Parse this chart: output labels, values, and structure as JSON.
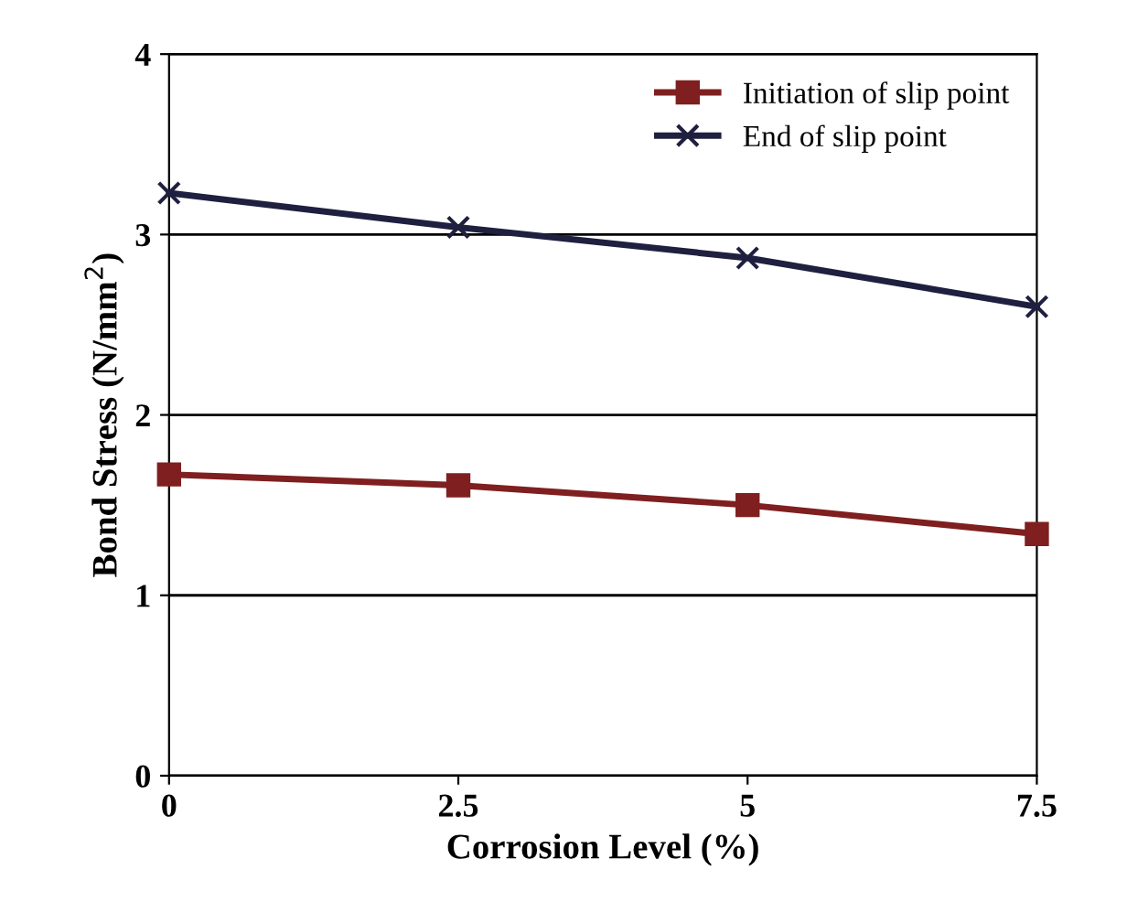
{
  "chart_data": {
    "type": "line",
    "xlabel": "Corrosion Level (%)",
    "ylabel": "Bond Stress (N/mm$^{2}$)",
    "x": [
      0,
      2.5,
      5,
      7.5
    ],
    "series": [
      {
        "name": "Initiation of slip point",
        "color": "#7f1f1f",
        "marker": "square",
        "values": [
          1.67,
          1.61,
          1.5,
          1.34
        ]
      },
      {
        "name": "End of slip point",
        "color": "#1f1f3f",
        "marker": "cross",
        "values": [
          3.23,
          3.04,
          2.87,
          2.6
        ]
      }
    ],
    "xlim": [
      0,
      7.5
    ],
    "xticks": [
      0,
      2.5,
      5,
      7.5
    ],
    "ylim": [
      0,
      4
    ],
    "yticks": [
      0,
      1,
      2,
      3,
      4
    ],
    "grid": "y",
    "legend": "top right",
    "line_style": "solid"
  }
}
